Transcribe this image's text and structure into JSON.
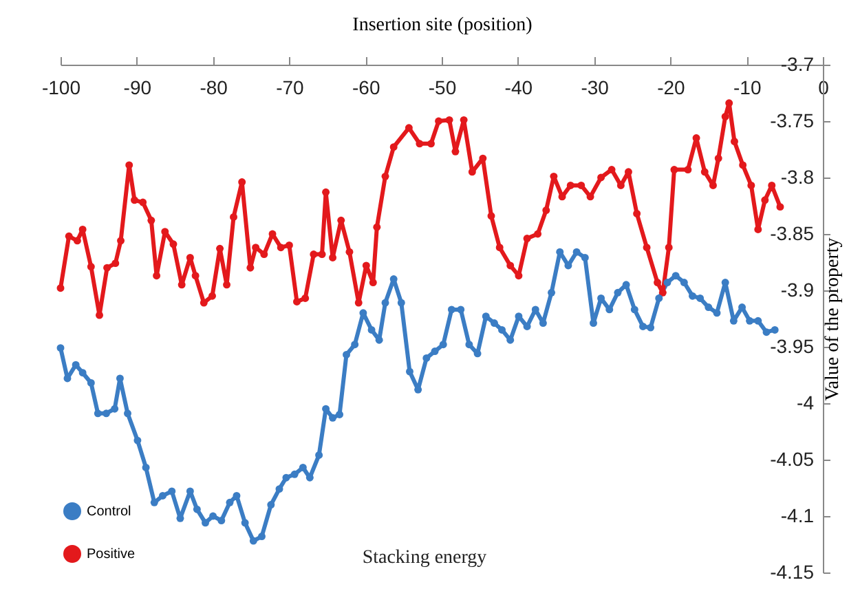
{
  "chart_data": {
    "type": "line",
    "xlabel": "Insertion site (position)",
    "ylabel": "Value of the property",
    "annotations": [
      "Stacking energy"
    ],
    "xlim": [
      -100,
      0
    ],
    "xticks": [
      -100,
      -90,
      -80,
      -70,
      -60,
      -50,
      -40,
      -30,
      -20,
      -10,
      0
    ],
    "ylim": [
      -4.15,
      -3.7
    ],
    "yticks": [
      -4.15,
      -4.1,
      -4.05,
      -4,
      -3.95,
      -3.9,
      -3.85,
      -3.8,
      -3.75,
      -3.7
    ],
    "grid": false,
    "legend": "bottom left",
    "marker": "circle",
    "line_style": "solid",
    "series": [
      {
        "name": "Control",
        "color": "#3b7dc4",
        "x": [
          -100,
          -99.1,
          -98,
          -97.1,
          -96,
          -95.1,
          -94,
          -92.9,
          -92.2,
          -91.2,
          -89.9,
          -88.8,
          -87.7,
          -86.6,
          -85.4,
          -84.3,
          -83,
          -82.1,
          -81,
          -80,
          -78.9,
          -77.8,
          -76.9,
          -75.8,
          -74.7,
          -73.6,
          -72.4,
          -71.3,
          -70.4,
          -69.3,
          -68.2,
          -67.3,
          -66.1,
          -65.2,
          -64.3,
          -63.4,
          -62.5,
          -61.4,
          -60.3,
          -59.2,
          -58.2,
          -57.4,
          -56.3,
          -55.3,
          -54.2,
          -53.1,
          -52,
          -50.9,
          -49.8,
          -48.7,
          -47.5,
          -46.4,
          -45.3,
          -44.2,
          -43.1,
          -42.1,
          -41,
          -39.9,
          -38.8,
          -37.7,
          -36.7,
          -35.6,
          -34.5,
          -33.4,
          -32.3,
          -31.2,
          -30.1,
          -29.1,
          -28,
          -26.9,
          -25.8,
          -24.7,
          -23.6,
          -22.6,
          -21.5,
          -20.4,
          -19.3,
          -18.2,
          -17.1,
          -16.1,
          -15,
          -13.9,
          -12.8,
          -11.7,
          -10.6,
          -9.6,
          -8.5,
          -7.4,
          -6.3
        ],
        "values": [
          -3.951,
          -3.978,
          -3.966,
          -3.973,
          -3.982,
          -4.009,
          -4.009,
          -4.005,
          -3.978,
          -4.009,
          -4.033,
          -4.057,
          -4.088,
          -4.082,
          -4.078,
          -4.102,
          -4.078,
          -4.094,
          -4.106,
          -4.1,
          -4.104,
          -4.088,
          -4.082,
          -4.106,
          -4.122,
          -4.118,
          -4.09,
          -4.076,
          -4.066,
          -4.063,
          -4.057,
          -4.066,
          -4.046,
          -4.005,
          -4.013,
          -4.01,
          -3.957,
          -3.948,
          -3.92,
          -3.935,
          -3.944,
          -3.911,
          -3.89,
          -3.911,
          -3.972,
          -3.988,
          -3.96,
          -3.954,
          -3.948,
          -3.917,
          -3.917,
          -3.948,
          -3.956,
          -3.923,
          -3.929,
          -3.935,
          -3.944,
          -3.923,
          -3.932,
          -3.917,
          -3.929,
          -3.902,
          -3.866,
          -3.878,
          -3.866,
          -3.871,
          -3.929,
          -3.907,
          -3.917,
          -3.902,
          -3.895,
          -3.917,
          -3.932,
          -3.933,
          -3.907,
          -3.893,
          -3.887,
          -3.893,
          -3.905,
          -3.907,
          -3.915,
          -3.92,
          -3.893,
          -3.927,
          -3.915,
          -3.927,
          -3.927,
          -3.937,
          -3.935
        ]
      },
      {
        "name": "Positive",
        "color": "#e3191c",
        "x": [
          -100,
          -98.9,
          -97.8,
          -97.1,
          -96,
          -94.9,
          -93.9,
          -92.8,
          -92.1,
          -91,
          -90.3,
          -89.2,
          -88.1,
          -87.4,
          -86.3,
          -85.2,
          -84.1,
          -83,
          -82.3,
          -81.2,
          -80.1,
          -79.1,
          -78.2,
          -77.3,
          -76.2,
          -75.1,
          -74.4,
          -73.3,
          -72.2,
          -71.1,
          -70,
          -69,
          -67.9,
          -66.8,
          -65.7,
          -65.2,
          -64.3,
          -63.2,
          -62.1,
          -60.9,
          -59.9,
          -59,
          -58.5,
          -57.4,
          -56.3,
          -54.3,
          -52.9,
          -51.4,
          -50.4,
          -49,
          -48.2,
          -47.1,
          -46,
          -44.6,
          -43.5,
          -42.4,
          -41,
          -39.9,
          -38.8,
          -37.4,
          -36.3,
          -35.3,
          -34.2,
          -33.1,
          -31.7,
          -30.5,
          -29.1,
          -27.7,
          -26.5,
          -25.5,
          -24.4,
          -23.1,
          -21.7,
          -21,
          -20.2,
          -19.5,
          -17.7,
          -16.6,
          -15.5,
          -14.4,
          -13.7,
          -12.8,
          -12.3,
          -11.6,
          -10.5,
          -9.4,
          -8.5,
          -7.6,
          -6.7,
          -5.6
        ],
        "values": [
          -3.898,
          -3.852,
          -3.856,
          -3.846,
          -3.879,
          -3.922,
          -3.88,
          -3.876,
          -3.856,
          -3.789,
          -3.82,
          -3.822,
          -3.838,
          -3.887,
          -3.848,
          -3.859,
          -3.895,
          -3.871,
          -3.887,
          -3.911,
          -3.905,
          -3.863,
          -3.895,
          -3.835,
          -3.804,
          -3.88,
          -3.862,
          -3.868,
          -3.85,
          -3.862,
          -3.86,
          -3.91,
          -3.907,
          -3.868,
          -3.868,
          -3.813,
          -3.871,
          -3.838,
          -3.866,
          -3.911,
          -3.878,
          -3.893,
          -3.844,
          -3.799,
          -3.773,
          -3.756,
          -3.77,
          -3.77,
          -3.75,
          -3.749,
          -3.777,
          -3.749,
          -3.795,
          -3.783,
          -3.834,
          -3.862,
          -3.878,
          -3.887,
          -3.854,
          -3.85,
          -3.829,
          -3.799,
          -3.817,
          -3.807,
          -3.807,
          -3.817,
          -3.8,
          -3.793,
          -3.807,
          -3.795,
          -3.832,
          -3.862,
          -3.893,
          -3.902,
          -3.862,
          -3.793,
          -3.793,
          -3.765,
          -3.795,
          -3.807,
          -3.783,
          -3.746,
          -3.734,
          -3.768,
          -3.789,
          -3.807,
          -3.846,
          -3.82,
          -3.807,
          -3.826
        ]
      }
    ]
  }
}
